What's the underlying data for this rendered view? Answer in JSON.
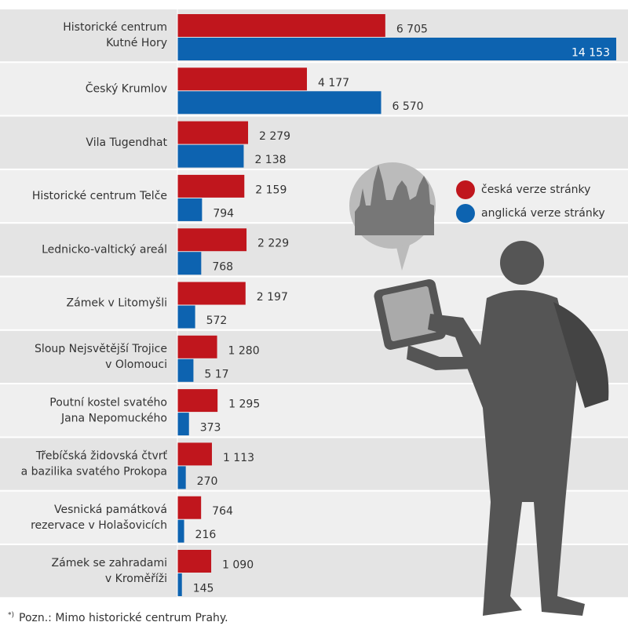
{
  "chart_data": {
    "type": "bar",
    "categories": [
      [
        "Historické centrum",
        "Kutné Hory"
      ],
      [
        "Český Krumlov"
      ],
      [
        "Vila Tugendhat"
      ],
      [
        "Historické centrum Telče"
      ],
      [
        "Lednicko-valtický areál"
      ],
      [
        "Zámek v Litomyšli"
      ],
      [
        "Sloup Nejsvětější Trojice",
        "v Olomouci"
      ],
      [
        "Poutní kostel svatého",
        "Jana Nepomuckého"
      ],
      [
        "Třebíčská židovská čtvrť",
        "a bazilika svatého Prokopa"
      ],
      [
        "Vesnická památková",
        "rezervace v Holašovicích"
      ],
      [
        "Zámek se zahradami",
        "v Kroměříži"
      ]
    ],
    "series": [
      {
        "name": "česká verze stránky",
        "color": "#c0161d",
        "values": [
          6705,
          4177,
          2279,
          2159,
          2229,
          2197,
          1280,
          1295,
          1113,
          764,
          1090
        ],
        "value_labels": [
          "6 705",
          "4 177",
          "2 279",
          "2 159",
          "2 229",
          "2 197",
          "1 280",
          "1 295",
          "1 113",
          "764",
          "1 090"
        ]
      },
      {
        "name": "anglická verze stránky",
        "color": "#0d63b0",
        "values": [
          14153,
          6570,
          2138,
          794,
          768,
          572,
          517,
          373,
          270,
          216,
          145
        ],
        "value_labels": [
          "14 153",
          "6 570",
          "2 138",
          "794",
          "768",
          "572",
          "5 17",
          "373",
          "270",
          "216",
          "145"
        ]
      }
    ],
    "footnote_marker": "*)",
    "footnote": "Pozn.: Mimo historické centrum Prahy."
  }
}
